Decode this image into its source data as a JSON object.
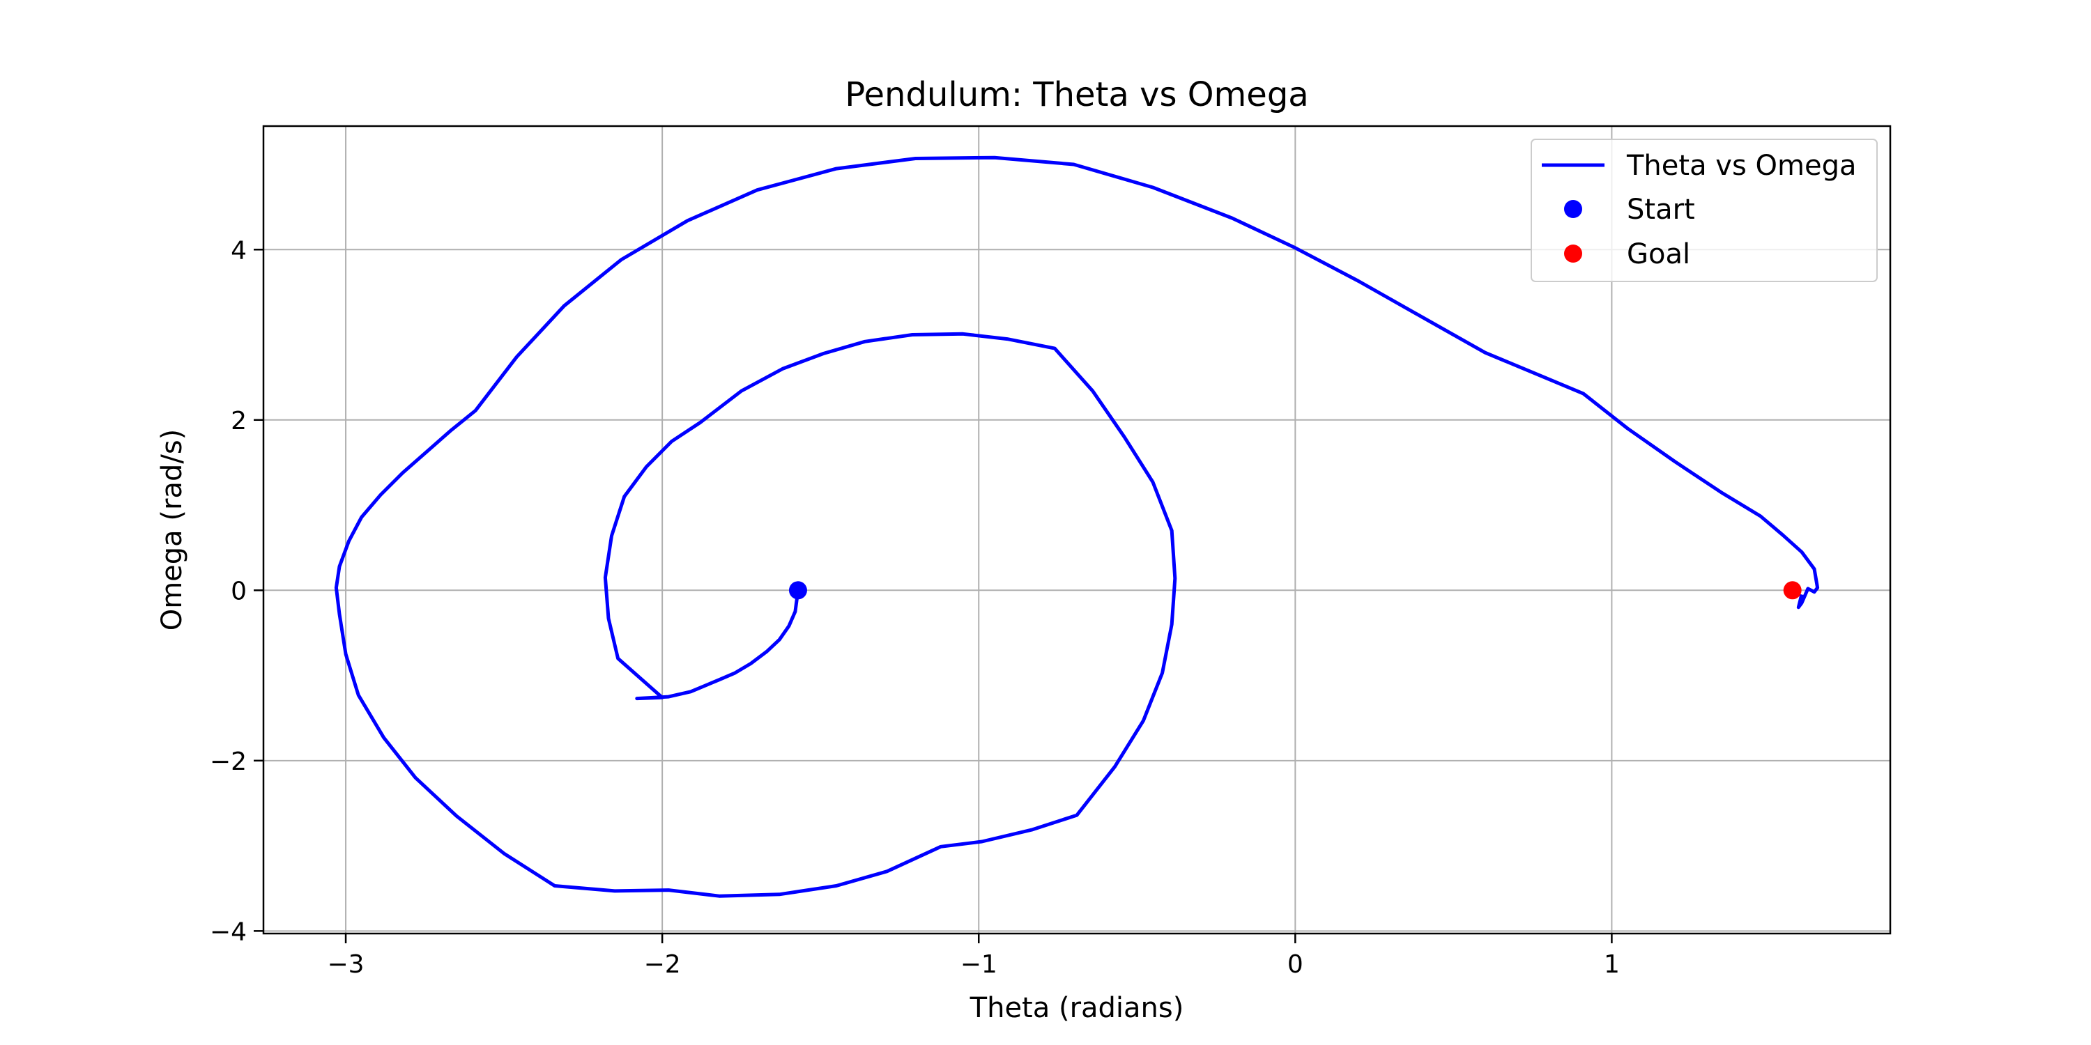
{
  "chart_data": {
    "type": "line",
    "title": "Pendulum: Theta vs Omega",
    "xlabel": "Theta (radians)",
    "ylabel": "Omega (rad/s)",
    "xlim": [
      -3.26,
      1.88
    ],
    "ylim": [
      -4.03,
      5.45
    ],
    "xticks": [
      -3,
      -2,
      -1,
      0,
      1
    ],
    "xtick_labels": [
      "−3",
      "−2",
      "−1",
      "0",
      "1"
    ],
    "yticks": [
      -4,
      -2,
      0,
      2,
      4
    ],
    "ytick_labels": [
      "−4",
      "−2",
      "0",
      "2",
      "4"
    ],
    "grid": true,
    "legend_position": "top-right",
    "colors": {
      "trajectory": "#0000ff",
      "start": "#0000ff",
      "goal": "#ff0000",
      "grid": "#b0b0b0"
    },
    "series": [
      {
        "name": "Theta vs Omega",
        "type": "line",
        "points": [
          [
            -1.571,
            0.0
          ],
          [
            -1.58,
            -0.25
          ],
          [
            -1.6,
            -0.42
          ],
          [
            -1.63,
            -0.58
          ],
          [
            -1.67,
            -0.72
          ],
          [
            -1.72,
            -0.86
          ],
          [
            -1.77,
            -0.97
          ],
          [
            -1.82,
            -1.05
          ],
          [
            -1.91,
            -1.19
          ],
          [
            -1.98,
            -1.25
          ],
          [
            -2.08,
            -1.27
          ],
          [
            -2.0,
            -1.26
          ],
          [
            -2.14,
            -0.8
          ],
          [
            -2.17,
            -0.33
          ],
          [
            -2.18,
            0.15
          ],
          [
            -2.16,
            0.64
          ],
          [
            -2.12,
            1.1
          ],
          [
            -2.05,
            1.45
          ],
          [
            -1.97,
            1.75
          ],
          [
            -1.88,
            1.97
          ],
          [
            -1.75,
            2.34
          ],
          [
            -1.62,
            2.6
          ],
          [
            -1.49,
            2.78
          ],
          [
            -1.36,
            2.92
          ],
          [
            -1.21,
            3.0
          ],
          [
            -1.05,
            3.01
          ],
          [
            -0.91,
            2.95
          ],
          [
            -0.76,
            2.84
          ],
          [
            -0.64,
            2.34
          ],
          [
            -0.54,
            1.8
          ],
          [
            -0.45,
            1.27
          ],
          [
            -0.39,
            0.7
          ],
          [
            -0.38,
            0.14
          ],
          [
            -0.39,
            -0.4
          ],
          [
            -0.42,
            -0.97
          ],
          [
            -0.48,
            -1.53
          ],
          [
            -0.57,
            -2.07
          ],
          [
            -0.69,
            -2.64
          ],
          [
            -0.83,
            -2.81
          ],
          [
            -0.99,
            -2.95
          ],
          [
            -1.12,
            -3.01
          ],
          [
            -1.29,
            -3.3
          ],
          [
            -1.45,
            -3.47
          ],
          [
            -1.63,
            -3.57
          ],
          [
            -1.82,
            -3.59
          ],
          [
            -1.98,
            -3.52
          ],
          [
            -2.15,
            -3.53
          ],
          [
            -2.34,
            -3.47
          ],
          [
            -2.5,
            -3.09
          ],
          [
            -2.65,
            -2.65
          ],
          [
            -2.78,
            -2.2
          ],
          [
            -2.88,
            -1.73
          ],
          [
            -2.96,
            -1.23
          ],
          [
            -3.0,
            -0.75
          ],
          [
            -3.02,
            -0.28
          ],
          [
            -3.03,
            0.03
          ],
          [
            -3.02,
            0.28
          ],
          [
            -2.99,
            0.58
          ],
          [
            -2.95,
            0.86
          ],
          [
            -2.89,
            1.12
          ],
          [
            -2.82,
            1.38
          ],
          [
            -2.74,
            1.64
          ],
          [
            -2.67,
            1.87
          ],
          [
            -2.59,
            2.11
          ],
          [
            -2.46,
            2.74
          ],
          [
            -2.31,
            3.34
          ],
          [
            -2.13,
            3.88
          ],
          [
            -1.92,
            4.34
          ],
          [
            -1.7,
            4.7
          ],
          [
            -1.45,
            4.95
          ],
          [
            -1.2,
            5.07
          ],
          [
            -0.95,
            5.08
          ],
          [
            -0.7,
            5.0
          ],
          [
            -0.45,
            4.73
          ],
          [
            -0.2,
            4.37
          ],
          [
            0.0,
            4.02
          ],
          [
            0.2,
            3.63
          ],
          [
            0.4,
            3.21
          ],
          [
            0.6,
            2.79
          ],
          [
            0.8,
            2.48
          ],
          [
            0.91,
            2.31
          ],
          [
            1.05,
            1.9
          ],
          [
            1.2,
            1.51
          ],
          [
            1.35,
            1.14
          ],
          [
            1.47,
            0.87
          ],
          [
            1.54,
            0.65
          ],
          [
            1.6,
            0.45
          ],
          [
            1.64,
            0.25
          ],
          [
            1.65,
            0.03
          ],
          [
            1.64,
            -0.02
          ],
          [
            1.62,
            0.02
          ],
          [
            1.6,
            -0.15
          ],
          [
            1.59,
            -0.2
          ],
          [
            1.6,
            -0.05
          ]
        ]
      },
      {
        "name": "Start",
        "type": "point",
        "points": [
          [
            -1.571,
            0.0
          ]
        ]
      },
      {
        "name": "Goal",
        "type": "point",
        "points": [
          [
            1.571,
            0.0
          ]
        ]
      }
    ]
  }
}
